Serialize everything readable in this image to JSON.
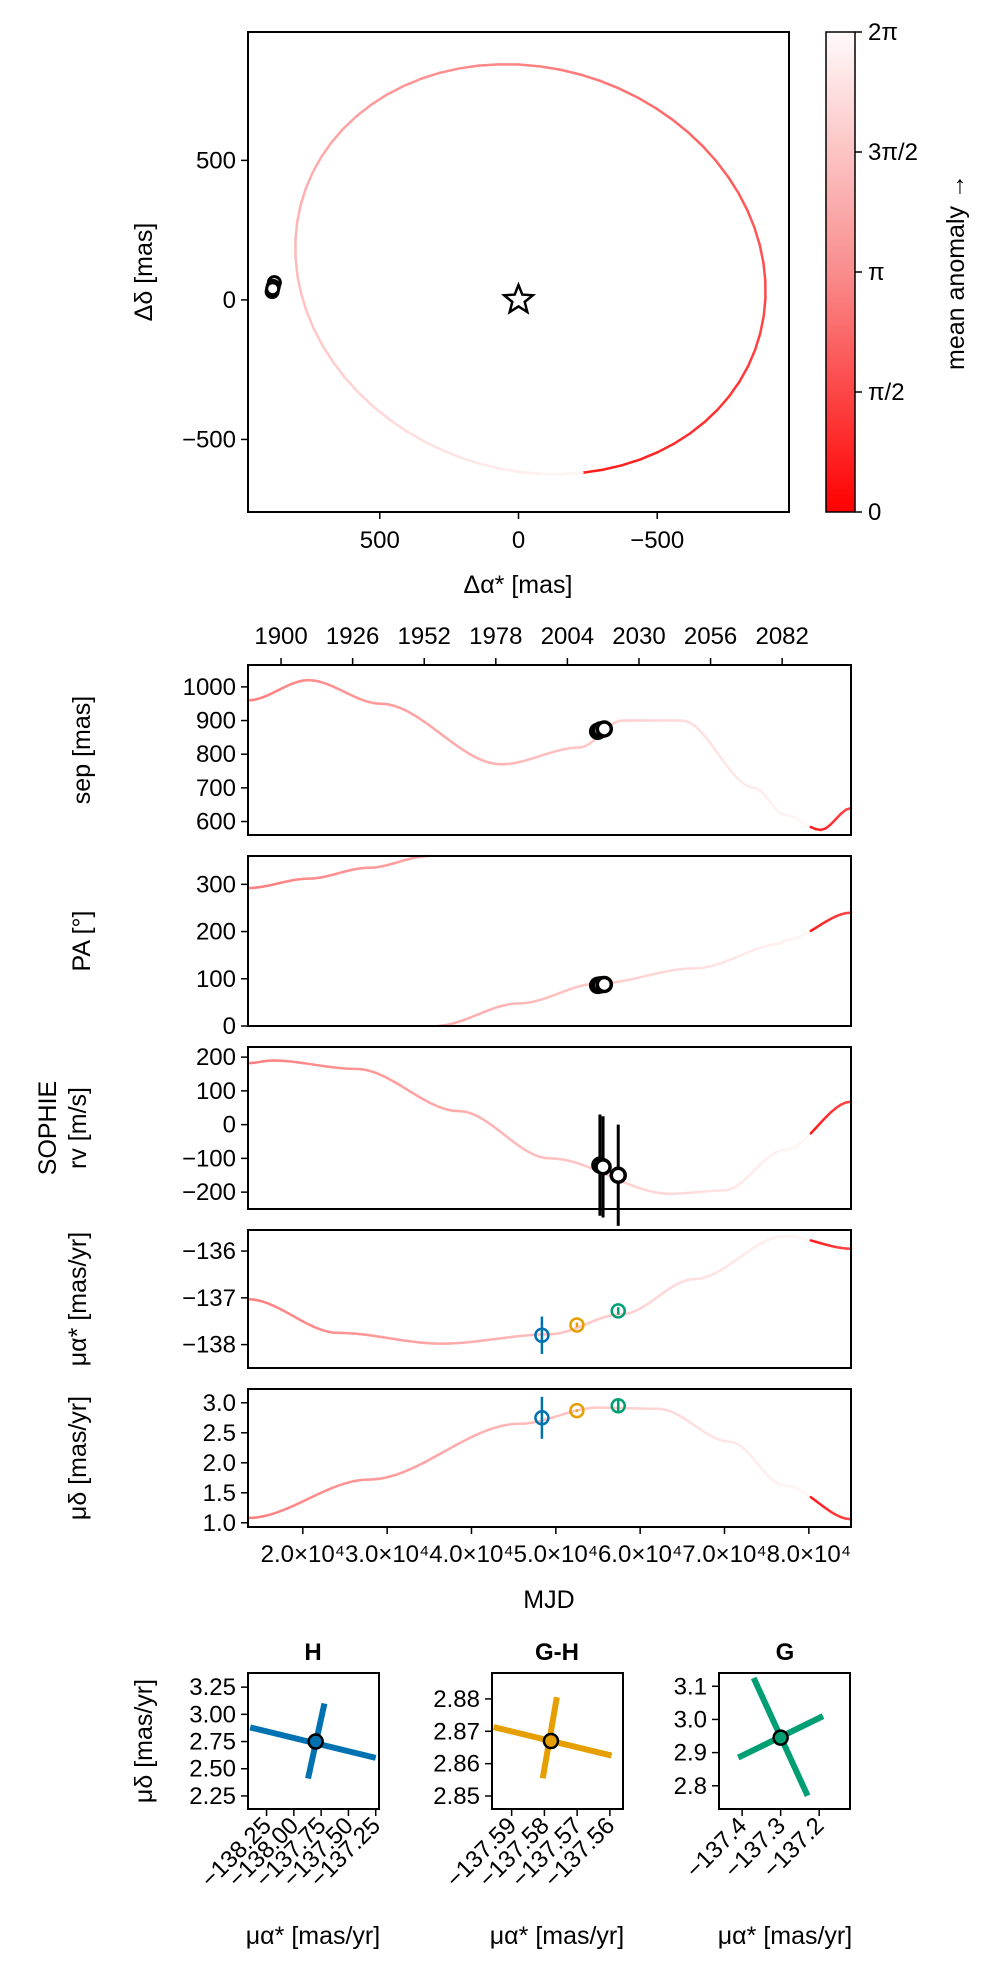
{
  "colors": {
    "orbit_start": "#ff1a1a",
    "orbit_end": "#fff7f7",
    "H": "#0072b2",
    "GH": "#e69f00",
    "G": "#009e73",
    "obs": "#000000"
  },
  "colorbar": {
    "label": "mean anomaly →",
    "ticks": [
      "0",
      "π/2",
      "π",
      "3π/2",
      "2π"
    ]
  },
  "chart_data": [
    {
      "id": "sky",
      "type": "line",
      "xlabel": "Δα* [mas]",
      "ylabel": "Δδ [mas]",
      "xlim": [
        975,
        -975
      ],
      "ylim": [
        -760,
        960
      ],
      "xticks": [
        "500",
        "0",
        "−500"
      ],
      "xtick_values": [
        500,
        0,
        -500
      ],
      "yticks": [
        "−500",
        "0",
        "500"
      ],
      "ytick_values": [
        -500,
        0,
        500
      ],
      "orbit": {
        "cx": -43,
        "cy": 110,
        "a": 860,
        "b": 720,
        "rot_deg": 18,
        "phase0_deg": -118
      },
      "star": [
        0,
        0
      ],
      "points": [
        [
          880,
          62
        ],
        [
          884,
          48
        ],
        [
          888,
          30
        ],
        [
          886,
          40
        ]
      ]
    },
    {
      "id": "sep",
      "type": "line",
      "ylabel": "sep [mas]",
      "ylim": [
        560,
        1065
      ],
      "yticks": [
        "600",
        "700",
        "800",
        "900",
        "1000"
      ],
      "ytick_values": [
        600,
        700,
        800,
        900,
        1000
      ],
      "top_axis": {
        "ticks": [
          "1900",
          "1926",
          "1952",
          "1978",
          "2004",
          "2030",
          "2056",
          "2082"
        ],
        "values": [
          1900,
          1926,
          1952,
          1978,
          2004,
          2030,
          2056,
          2082
        ]
      },
      "points": [
        [
          2015.0,
          868
        ],
        [
          2016.0,
          872
        ],
        [
          2017.4,
          875
        ]
      ]
    },
    {
      "id": "pa",
      "type": "line",
      "ylabel": "PA [°]",
      "ylim": [
        0,
        360
      ],
      "yticks": [
        "0",
        "100",
        "200",
        "300"
      ],
      "ytick_values": [
        0,
        100,
        200,
        300
      ],
      "points": [
        [
          2015.0,
          86
        ],
        [
          2016.0,
          87
        ],
        [
          2017.4,
          88
        ]
      ]
    },
    {
      "id": "rv",
      "type": "line",
      "ylabel_line1": "SOPHIE",
      "ylabel_line2": "rv [m/s]",
      "ylim": [
        -250,
        230
      ],
      "yticks": [
        "−200",
        "−100",
        "0",
        "100",
        "200"
      ],
      "ytick_values": [
        -200,
        -100,
        0,
        100,
        200
      ],
      "points": [
        [
          55230,
          -120,
          150
        ],
        [
          55600,
          -125,
          150
        ],
        [
          57400,
          -150,
          150
        ]
      ]
    },
    {
      "id": "pmra",
      "type": "line",
      "ylabel": "μα* [mas/yr]",
      "ylim": [
        -138.5,
        -135.55
      ],
      "yticks": [
        "−138",
        "−137",
        "−136"
      ],
      "ytick_values": [
        -138,
        -137,
        -136
      ],
      "points": [
        {
          "name": "H",
          "mjd": 48350,
          "value": -137.8,
          "err": 0.4
        },
        {
          "name": "GH",
          "mjd": 52500,
          "value": -137.58,
          "err": 0.05
        },
        {
          "name": "G",
          "mjd": 57400,
          "value": -137.28,
          "err": 0.08
        }
      ]
    },
    {
      "id": "pmdec",
      "type": "line",
      "ylabel": "μδ [mas/yr]",
      "ylim": [
        0.93,
        3.23
      ],
      "yticks": [
        "1.0",
        "1.5",
        "2.0",
        "2.5",
        "3.0"
      ],
      "ytick_values": [
        1.0,
        1.5,
        2.0,
        2.5,
        3.0
      ],
      "xlabel": "MJD",
      "xticks": [
        "2.0×10⁴",
        "3.0×10⁴",
        "4.0×10⁴",
        "5.0×10⁴",
        "6.0×10⁴",
        "7.0×10⁴",
        "8.0×10⁴"
      ],
      "xtick_values": [
        20000,
        30000,
        40000,
        50000,
        60000,
        70000,
        80000
      ],
      "points": [
        {
          "name": "H",
          "mjd": 48350,
          "value": 2.75,
          "err": 0.35
        },
        {
          "name": "GH",
          "mjd": 52500,
          "value": 2.87,
          "err": 0.02
        },
        {
          "name": "G",
          "mjd": 57400,
          "value": 2.95,
          "err": 0.12
        }
      ]
    },
    {
      "id": "H",
      "type": "scatter",
      "title": "H",
      "xlabel": "μα* [mas/yr]",
      "ylabel": "μδ [mas/yr]",
      "xlim": [
        -138.42,
        -137.22
      ],
      "ylim": [
        2.13,
        3.38
      ],
      "xticks": [
        "−138.25",
        "−138.00",
        "−137.75",
        "−137.50",
        "−137.25"
      ],
      "xtick_values": [
        -138.25,
        -138.0,
        -137.75,
        -137.5,
        -137.25
      ],
      "yticks": [
        "2.25",
        "2.50",
        "2.75",
        "3.00",
        "3.25"
      ],
      "ytick_values": [
        2.25,
        2.5,
        2.75,
        3.0,
        3.25
      ],
      "center": [
        -137.8,
        2.75
      ],
      "bars": [
        [
          [
            -138.4,
            2.88
          ],
          [
            -137.25,
            2.6
          ]
        ],
        [
          [
            -137.87,
            2.41
          ],
          [
            -137.72,
            3.1
          ]
        ]
      ]
    },
    {
      "id": "GH",
      "type": "scatter",
      "title": "G-H",
      "xlabel": "μα* [mas/yr]",
      "ylabel": "",
      "xlim": [
        -137.596,
        -137.556
      ],
      "ylim": [
        2.846,
        2.888
      ],
      "xticks": [
        "−137.59",
        "−137.58",
        "−137.57",
        "−137.56"
      ],
      "xtick_values": [
        -137.59,
        -137.58,
        -137.57,
        -137.56
      ],
      "yticks": [
        "2.85",
        "2.86",
        "2.87",
        "2.88"
      ],
      "ytick_values": [
        2.85,
        2.86,
        2.87,
        2.88
      ],
      "center": [
        -137.578,
        2.867
      ],
      "bars": [
        [
          [
            -137.5955,
            2.8713
          ],
          [
            -137.5595,
            2.8625
          ]
        ],
        [
          [
            -137.5805,
            2.8555
          ],
          [
            -137.5762,
            2.8805
          ]
        ]
      ]
    },
    {
      "id": "G",
      "type": "scatter",
      "title": "G",
      "xlabel": "μα* [mas/yr]",
      "ylabel": "",
      "xlim": [
        -137.46,
        -137.12
      ],
      "ylim": [
        2.73,
        3.14
      ],
      "xticks": [
        "−137.4",
        "−137.3",
        "−137.2"
      ],
      "xtick_values": [
        -137.4,
        -137.3,
        -137.2
      ],
      "yticks": [
        "2.8",
        "2.9",
        "3.0",
        "3.1"
      ],
      "ytick_values": [
        2.8,
        2.9,
        3.0,
        3.1
      ],
      "center": [
        -137.3,
        2.945
      ],
      "bars": [
        [
          [
            -137.41,
            2.885
          ],
          [
            -137.19,
            3.01
          ]
        ],
        [
          [
            -137.37,
            3.125
          ],
          [
            -137.23,
            2.77
          ]
        ]
      ]
    }
  ]
}
